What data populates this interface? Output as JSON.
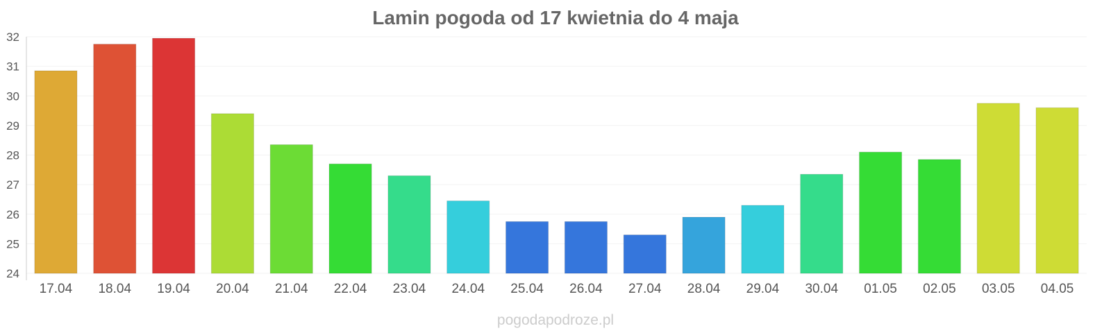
{
  "chart_data": {
    "type": "bar",
    "title": "Lamin pogoda od 17 kwietnia do 4 maja",
    "xlabel": "",
    "ylabel": "",
    "ylim": [
      24,
      32
    ],
    "yticks": [
      "24",
      "25",
      "26",
      "27",
      "28",
      "29",
      "30",
      "31",
      "32"
    ],
    "grid": true,
    "categories": [
      "17.04",
      "18.04",
      "19.04",
      "20.04",
      "21.04",
      "22.04",
      "23.04",
      "24.04",
      "25.04",
      "26.04",
      "27.04",
      "28.04",
      "29.04",
      "30.04",
      "01.05",
      "02.05",
      "03.05",
      "04.05"
    ],
    "values": [
      30.85,
      31.75,
      31.95,
      29.4,
      28.35,
      27.7,
      27.3,
      26.45,
      25.75,
      25.75,
      25.3,
      25.9,
      26.3,
      27.35,
      28.1,
      27.85,
      29.75,
      29.6
    ],
    "colors": [
      "#dea935",
      "#de5235",
      "#dc3535",
      "#acdc35",
      "#6cdc35",
      "#35dc35",
      "#35dc8b",
      "#35cedc",
      "#3576dc",
      "#3576dc",
      "#3576dc",
      "#35a4dc",
      "#35cedc",
      "#35dc8b",
      "#35dc35",
      "#35dc35",
      "#cedc35",
      "#cedc35"
    ]
  },
  "watermark": "pogodapodroze.pl"
}
